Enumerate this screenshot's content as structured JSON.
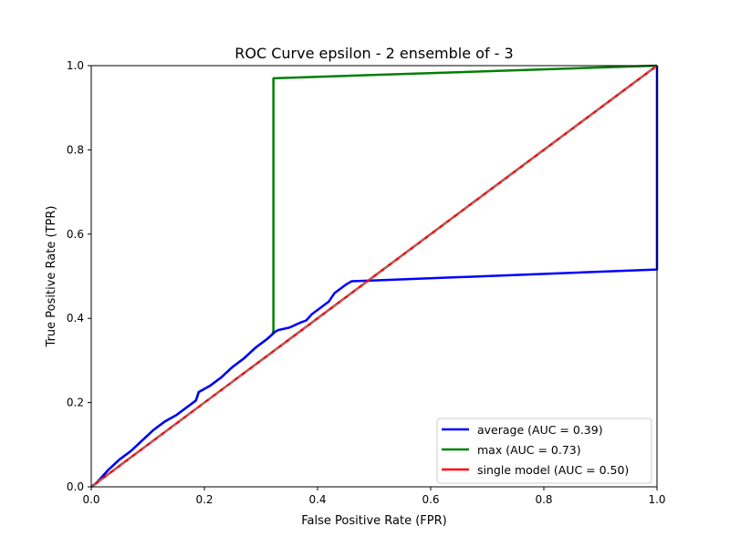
{
  "chart_data": {
    "type": "line",
    "title": "ROC Curve epsilon - 2 ensemble of - 3",
    "xlabel": "False Positive Rate (FPR)",
    "ylabel": "True Positive Rate (TPR)",
    "xlim": [
      0,
      1
    ],
    "ylim": [
      0,
      1
    ],
    "xticks": [
      0,
      0.2,
      0.4,
      0.6,
      0.8,
      1
    ],
    "yticks": [
      0,
      0.2,
      0.4,
      0.6,
      0.8,
      1
    ],
    "xtick_labels": [
      "0.0",
      "0.2",
      "0.4",
      "0.6",
      "0.8",
      "1.0"
    ],
    "ytick_labels": [
      "0.0",
      "0.2",
      "0.4",
      "0.6",
      "0.8",
      "1.0"
    ],
    "grid": false,
    "legend_position": "bottom-right",
    "series": [
      {
        "name": "average",
        "label": "average (AUC = 0.39)",
        "auc": 0.39,
        "color": "#0000ff",
        "x": [
          0,
          0.01,
          0.03,
          0.05,
          0.07,
          0.09,
          0.11,
          0.13,
          0.15,
          0.17,
          0.18,
          0.185,
          0.19,
          0.21,
          0.23,
          0.25,
          0.27,
          0.29,
          0.31,
          0.32,
          0.325,
          0.33,
          0.35,
          0.37,
          0.38,
          0.39,
          0.4,
          0.41,
          0.42,
          0.43,
          0.44,
          0.45,
          0.46,
          0.5,
          1.0,
          1.0
        ],
        "y": [
          0,
          0.01,
          0.04,
          0.065,
          0.085,
          0.11,
          0.135,
          0.155,
          0.17,
          0.19,
          0.2,
          0.205,
          0.225,
          0.24,
          0.26,
          0.285,
          0.305,
          0.33,
          0.35,
          0.362,
          0.368,
          0.372,
          0.378,
          0.39,
          0.395,
          0.41,
          0.42,
          0.43,
          0.44,
          0.46,
          0.47,
          0.48,
          0.488,
          0.49,
          0.516,
          1.0
        ]
      },
      {
        "name": "max",
        "label": "max (AUC = 0.73)",
        "auc": 0.73,
        "color": "#008000",
        "x": [
          0,
          0.01,
          0.03,
          0.05,
          0.07,
          0.09,
          0.11,
          0.13,
          0.15,
          0.17,
          0.18,
          0.185,
          0.19,
          0.21,
          0.23,
          0.25,
          0.27,
          0.29,
          0.31,
          0.32,
          0.322,
          0.322,
          1.0
        ],
        "y": [
          0,
          0.01,
          0.04,
          0.065,
          0.085,
          0.11,
          0.135,
          0.155,
          0.17,
          0.19,
          0.2,
          0.205,
          0.225,
          0.24,
          0.26,
          0.285,
          0.305,
          0.33,
          0.35,
          0.362,
          0.37,
          0.97,
          1.0
        ]
      },
      {
        "name": "single model",
        "label": "single model (AUC = 0.50)",
        "auc": 0.5,
        "color": "#ff0000",
        "x": [
          0,
          1
        ],
        "y": [
          0,
          1
        ]
      }
    ],
    "reference_line": {
      "x": [
        0,
        1
      ],
      "y": [
        0,
        1
      ],
      "color": "#808080",
      "style": "dashed"
    }
  }
}
